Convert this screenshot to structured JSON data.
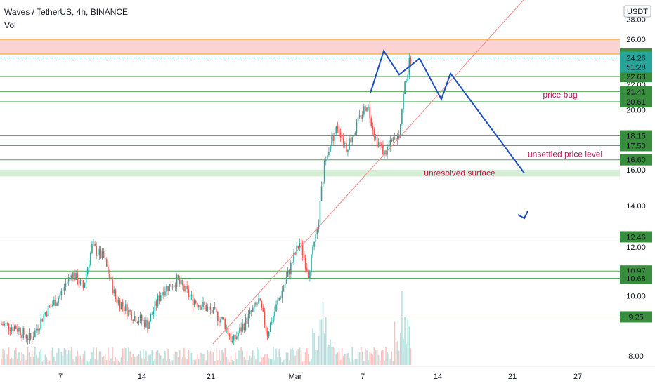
{
  "header": {
    "title": "Waves / TetherUS, 4h, BINANCE",
    "indicator": "Vol"
  },
  "colors": {
    "up": "#26a69a",
    "down": "#ef5350",
    "level_line": "#4caf50",
    "level_label_bg": "#388e3c",
    "orange_line": "#ff9800",
    "resistance_zone": "#fbd3d3",
    "support_zone": "#d6efd6",
    "trendline": "#f28b8b",
    "projection": "#1e4fbf",
    "annotation_text": "#c2185b",
    "current_price_bg": "#26a69a"
  },
  "chart_data": {
    "type": "candlestick",
    "symbol": "Waves / TetherUS",
    "timeframe": "4h",
    "exchange": "BINANCE",
    "currency": "USDT",
    "y_scale": "log",
    "ylim": [
      7.8,
      29.0
    ],
    "x_ticks": [
      "7",
      "14",
      "21",
      "Mar",
      "7",
      "14",
      "21",
      "27"
    ],
    "y_ticks": [
      "8.00",
      "10.00",
      "12.00",
      "14.00",
      "16.00",
      "18.00",
      "20.00",
      "22.00",
      "26.00",
      "28.00"
    ],
    "current_price": "24.26",
    "countdown": "51:28",
    "price_levels": [
      "26.00",
      "24.61",
      "22.63",
      "21.41",
      "20.61",
      "18.15",
      "17.50",
      "16.60",
      "12.46",
      "10.97",
      "10.68",
      "9.25"
    ],
    "annotations": [
      "price bug",
      "unsettled price level",
      "unresolved surface"
    ],
    "price_path": [
      {
        "i": 0,
        "p": 9.0
      },
      {
        "i": 10,
        "p": 8.9
      },
      {
        "i": 20,
        "p": 8.5
      },
      {
        "i": 30,
        "p": 9.4
      },
      {
        "i": 40,
        "p": 10.0
      },
      {
        "i": 48,
        "p": 10.9
      },
      {
        "i": 56,
        "p": 10.3
      },
      {
        "i": 62,
        "p": 12.0
      },
      {
        "i": 70,
        "p": 11.5
      },
      {
        "i": 78,
        "p": 9.9
      },
      {
        "i": 90,
        "p": 9.3
      },
      {
        "i": 100,
        "p": 9.0
      },
      {
        "i": 110,
        "p": 10.2
      },
      {
        "i": 120,
        "p": 10.6
      },
      {
        "i": 130,
        "p": 9.9
      },
      {
        "i": 142,
        "p": 9.5
      },
      {
        "i": 152,
        "p": 9.1
      },
      {
        "i": 158,
        "p": 8.4
      },
      {
        "i": 166,
        "p": 9.0
      },
      {
        "i": 176,
        "p": 9.8
      },
      {
        "i": 182,
        "p": 8.7
      },
      {
        "i": 194,
        "p": 10.5
      },
      {
        "i": 204,
        "p": 12.2
      },
      {
        "i": 210,
        "p": 10.9
      },
      {
        "i": 216,
        "p": 12.6
      },
      {
        "i": 218,
        "p": 14.0
      },
      {
        "i": 222,
        "p": 17.0
      },
      {
        "i": 230,
        "p": 18.8
      },
      {
        "i": 236,
        "p": 17.4
      },
      {
        "i": 242,
        "p": 18.6
      },
      {
        "i": 250,
        "p": 20.5
      },
      {
        "i": 256,
        "p": 18.0
      },
      {
        "i": 262,
        "p": 17.0
      },
      {
        "i": 268,
        "p": 17.8
      },
      {
        "i": 272,
        "p": 18.3
      },
      {
        "i": 276,
        "p": 22.0
      },
      {
        "i": 280,
        "p": 24.3
      }
    ]
  }
}
